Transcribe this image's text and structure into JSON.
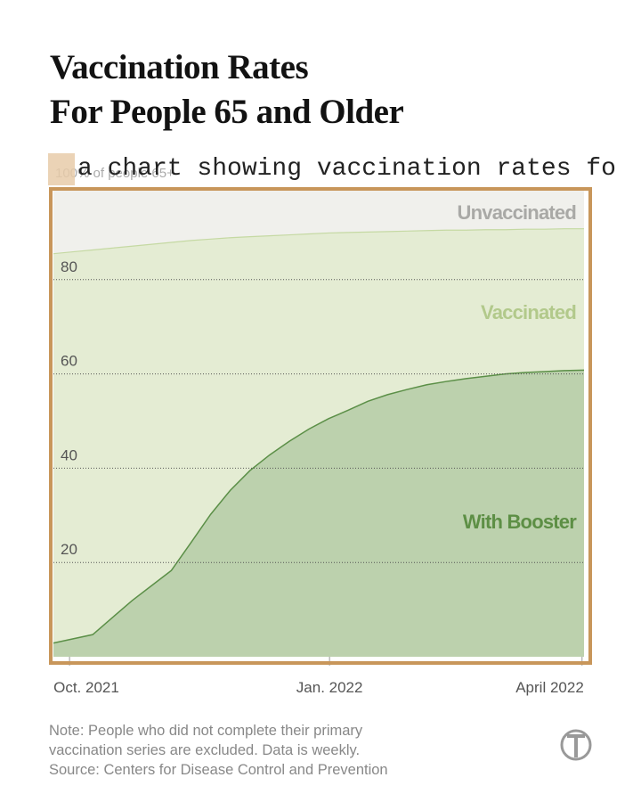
{
  "alt_text": "a chart showing vaccination rates fo",
  "chart_data": {
    "type": "area",
    "title": [
      "Vaccination Rates",
      "For People 65 and Older"
    ],
    "categories": [
      null,
      null,
      null,
      null,
      null,
      null,
      null,
      null,
      null,
      null,
      null,
      null,
      null,
      null,
      null,
      null,
      null,
      null,
      null,
      null,
      null,
      null,
      null,
      null,
      null,
      null,
      null,
      null
    ],
    "xlim": [
      0,
      27
    ],
    "xticks": [
      {
        "value": 0.82,
        "label": "Oct. 2021"
      },
      {
        "value": 14.05,
        "label": "Jan. 2022"
      },
      {
        "value": 26.9,
        "label": "April 2022"
      }
    ],
    "ylim": [
      0,
      100
    ],
    "yticks": [
      20,
      40,
      60,
      80,
      {
        "value": 100,
        "label": "100% of people 65+"
      }
    ],
    "grid": true,
    "background_label": {
      "text": "Unvaccinated",
      "color": "#a9a9a6",
      "fill": "#f0f0ec"
    },
    "series": [
      {
        "name": "Vaccinated",
        "color": "#c5d9a3",
        "fill": "#e4ecd3",
        "label_color": "#b2c98b",
        "values": [
          85.5,
          85.9,
          86.3,
          86.7,
          87.1,
          87.5,
          87.9,
          88.3,
          88.6,
          88.9,
          89.1,
          89.3,
          89.5,
          89.7,
          89.9,
          90.0,
          90.1,
          90.2,
          90.3,
          90.4,
          90.5,
          90.5,
          90.6,
          90.6,
          90.7,
          90.7,
          90.8,
          90.8
        ]
      },
      {
        "name": "With Booster",
        "color": "#5b8f47",
        "fill": "#bcd1ad",
        "label_color": "#5d8f45",
        "values": [
          2.9,
          3.8,
          4.7,
          8.3,
          11.9,
          15.1,
          18.3,
          24.2,
          30.2,
          35.3,
          39.5,
          42.8,
          45.7,
          48.3,
          50.5,
          52.3,
          54.2,
          55.6,
          56.7,
          57.7,
          58.4,
          59,
          59.5,
          60,
          60.3,
          60.5,
          60.7,
          60.8
        ]
      }
    ],
    "note": [
      "Note: People who did not complete their primary",
      "vaccination series are excluded. Data is weekly."
    ],
    "source": "Source: Centers for Disease Control and Prevention"
  }
}
